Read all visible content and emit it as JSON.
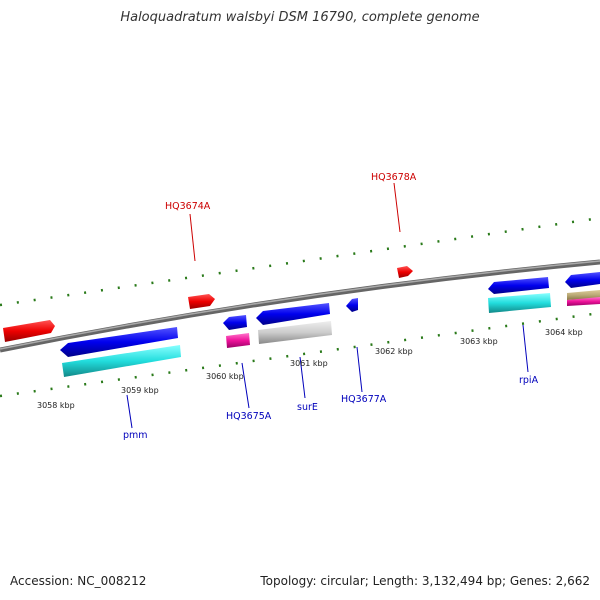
{
  "title": "Haloquadratum walsbyi DSM 16790, complete genome",
  "footer": {
    "accession": "Accession: NC_008212",
    "summary": "Topology: circular; Length: 3,132,494 bp; Genes: 2,662"
  },
  "colors": {
    "forward_label": "#cc0000",
    "reverse_label": "#0000bb",
    "tick": "#2a7a1a",
    "backbone": "#888888"
  },
  "kbp_labels": [
    "3058 kbp",
    "3059 kbp",
    "3060 kbp",
    "3061 kbp",
    "3062 kbp",
    "3063 kbp",
    "3064 kbp"
  ],
  "gene_labels": {
    "forward": [
      "HQ3674A",
      "HQ3678A"
    ],
    "reverse": [
      "pmm",
      "HQ3675A",
      "surE",
      "HQ3677A",
      "rpiA"
    ]
  }
}
